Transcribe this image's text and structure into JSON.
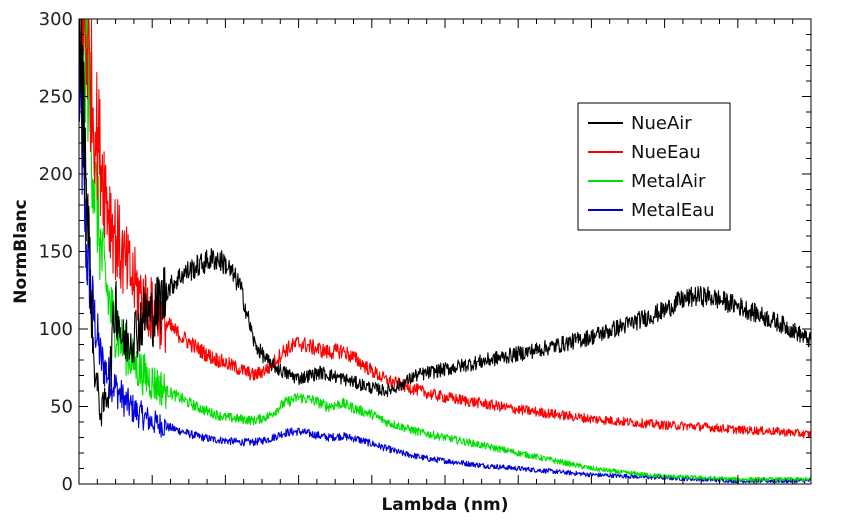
{
  "chart_data": {
    "type": "line",
    "xlabel": "Lambda (nm)",
    "ylabel": "NormBlanc",
    "ylim": [
      0,
      300
    ],
    "xlim": [
      0,
      100
    ],
    "y_ticks": [
      "0",
      "50",
      "100",
      "150",
      "200",
      "250",
      "300"
    ],
    "x_tick_labels_shown": false,
    "grid": false,
    "legend_position": "top-right",
    "series": [
      {
        "name": "NueAir",
        "color": "#000000",
        "x": [
          0,
          1,
          2,
          3,
          4,
          5,
          6,
          7,
          8,
          9,
          10,
          12,
          14,
          16,
          18,
          19,
          20,
          21,
          22,
          24,
          26,
          28,
          30,
          33,
          36,
          40,
          42,
          44,
          46,
          48,
          50,
          55,
          60,
          65,
          70,
          75,
          80,
          82,
          84,
          86,
          88,
          90,
          92,
          94,
          96,
          98,
          100
        ],
        "values": [
          300,
          200,
          80,
          45,
          60,
          120,
          90,
          95,
          100,
          110,
          108,
          125,
          135,
          140,
          145,
          145,
          142,
          135,
          128,
          90,
          78,
          72,
          68,
          72,
          68,
          62,
          60,
          64,
          70,
          72,
          74,
          79,
          84,
          89,
          95,
          103,
          112,
          118,
          121,
          121,
          118,
          115,
          111,
          107,
          103,
          98,
          92
        ]
      },
      {
        "name": "NueEau",
        "color": "#ff0000",
        "x": [
          0,
          1,
          2,
          3,
          4,
          5,
          6,
          7,
          8,
          9,
          10,
          12,
          14,
          16,
          18,
          20,
          22,
          24,
          26,
          28,
          30,
          32,
          34,
          36,
          38,
          40,
          42,
          44,
          46,
          48,
          50,
          55,
          60,
          65,
          70,
          75,
          80,
          85,
          90,
          95,
          100
        ],
        "values": [
          300,
          290,
          240,
          210,
          180,
          160,
          145,
          135,
          125,
          118,
          112,
          103,
          95,
          88,
          82,
          78,
          74,
          70,
          75,
          86,
          91,
          88,
          85,
          86,
          80,
          73,
          67,
          64,
          61,
          58,
          56,
          52,
          48,
          45,
          42,
          40,
          38,
          37,
          35,
          34,
          32
        ]
      },
      {
        "name": "MetalAir",
        "color": "#00e000",
        "x": [
          0,
          1,
          2,
          3,
          4,
          5,
          6,
          7,
          8,
          9,
          10,
          12,
          14,
          16,
          18,
          20,
          22,
          24,
          26,
          28,
          30,
          32,
          34,
          36,
          38,
          40,
          42,
          44,
          46,
          48,
          50,
          55,
          60,
          65,
          70,
          75,
          80,
          85,
          90,
          95,
          100
        ],
        "values": [
          300,
          280,
          200,
          150,
          120,
          100,
          90,
          82,
          75,
          70,
          66,
          60,
          55,
          50,
          46,
          43,
          42,
          41,
          44,
          52,
          56,
          54,
          50,
          52,
          48,
          45,
          40,
          37,
          34,
          32,
          30,
          25,
          20,
          15,
          10,
          7,
          5,
          4,
          3,
          3,
          3
        ]
      },
      {
        "name": "MetalEau",
        "color": "#0000dd",
        "x": [
          0,
          1,
          2,
          3,
          4,
          5,
          6,
          7,
          8,
          9,
          10,
          12,
          14,
          16,
          18,
          20,
          22,
          24,
          26,
          28,
          30,
          32,
          34,
          36,
          38,
          40,
          42,
          44,
          46,
          48,
          50,
          55,
          60,
          65,
          70,
          75,
          80,
          85,
          90,
          95,
          100
        ],
        "values": [
          260,
          150,
          110,
          80,
          70,
          62,
          55,
          50,
          46,
          43,
          40,
          37,
          34,
          31,
          29,
          28,
          27,
          27,
          29,
          33,
          34,
          32,
          30,
          31,
          29,
          26,
          23,
          20,
          18,
          16,
          15,
          12,
          10,
          8,
          6,
          5,
          4,
          3,
          2,
          2,
          2
        ]
      }
    ]
  }
}
